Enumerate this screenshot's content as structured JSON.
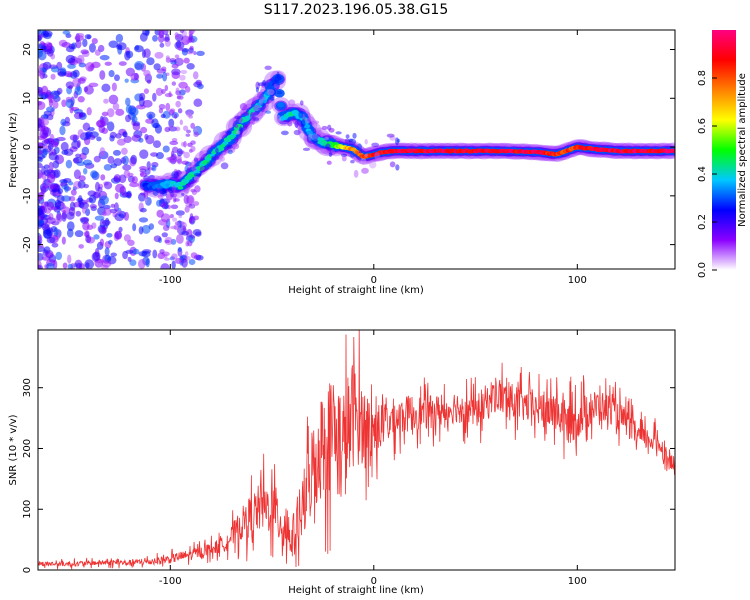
{
  "figure": {
    "title": "S117.2023.196.05.38.G15"
  },
  "chart_data": [
    {
      "type": "heatmap",
      "xlabel": "Height of straight line (km)",
      "ylabel": "Frequency (Hz)",
      "xlim": [
        -165,
        148
      ],
      "ylim": [
        -25,
        24
      ],
      "xticks": [
        -100,
        0,
        100
      ],
      "yticks": [
        -20,
        -10,
        0,
        10,
        20
      ],
      "grid": false,
      "colorbar": {
        "label": "Normalized spectral amplitude",
        "range": [
          0,
          1
        ],
        "ticks": [
          0.0,
          0.2,
          0.4,
          0.6,
          0.8
        ],
        "colormap": [
          "#ffffff",
          "#8a00ff",
          "#0000ff",
          "#00c8ff",
          "#00ff00",
          "#ffff00",
          "#ff8000",
          "#ff0000",
          "#ff0080"
        ]
      },
      "ridge": {
        "x": [
          -112,
          -105,
          -100,
          -95,
          -90,
          -85,
          -80,
          -75,
          -70,
          -65,
          -60,
          -55,
          -52,
          -50,
          -47,
          -45,
          -40,
          -35,
          -30,
          -25,
          -20,
          -15,
          -10,
          -5,
          0,
          5,
          10,
          20,
          40,
          60,
          80,
          90,
          100,
          110,
          120,
          130,
          148
        ],
        "y": [
          -8,
          -8,
          -7.5,
          -8,
          -6,
          -4,
          -2,
          0,
          2,
          5,
          7,
          9,
          11,
          12.5,
          14,
          6,
          7,
          6,
          2,
          1,
          0.5,
          0,
          -0.5,
          -2,
          -1.5,
          -1,
          -0.8,
          -0.8,
          -0.8,
          -0.8,
          -1,
          -1.5,
          0,
          -0.5,
          -0.8,
          -0.8,
          -0.8
        ],
        "amplitude": [
          0.3,
          0.35,
          0.4,
          0.45,
          0.45,
          0.45,
          0.45,
          0.45,
          0.45,
          0.45,
          0.45,
          0.4,
          0.4,
          0.35,
          0.3,
          0.4,
          0.45,
          0.4,
          0.4,
          0.45,
          0.5,
          0.7,
          0.8,
          0.85,
          0.9,
          0.95,
          1.0,
          1.0,
          1.0,
          1.0,
          1.0,
          0.9,
          0.9,
          1.0,
          1.0,
          1.0,
          1.0
        ]
      }
    },
    {
      "type": "line",
      "xlabel": "Height of straight line (km)",
      "ylabel": "SNR (10 * v/v)",
      "xlim": [
        -165,
        148
      ],
      "ylim": [
        0,
        395
      ],
      "xticks": [
        -100,
        0,
        100
      ],
      "yticks": [
        0,
        100,
        200,
        300
      ],
      "grid": false,
      "series": [
        {
          "color": "#ee3333",
          "x": [
            -165,
            -150,
            -135,
            -120,
            -110,
            -100,
            -95,
            -90,
            -85,
            -80,
            -75,
            -70,
            -65,
            -60,
            -55,
            -50,
            -45,
            -40,
            -35,
            -30,
            -25,
            -20,
            -15,
            -10,
            -5,
            0,
            5,
            10,
            15,
            20,
            25,
            30,
            35,
            40,
            45,
            50,
            55,
            60,
            65,
            70,
            75,
            80,
            85,
            90,
            95,
            100,
            105,
            110,
            115,
            120,
            125,
            130,
            135,
            140,
            145,
            148
          ],
          "y": [
            10,
            10,
            12,
            12,
            14,
            18,
            22,
            25,
            30,
            35,
            40,
            55,
            75,
            90,
            105,
            100,
            80,
            50,
            100,
            170,
            210,
            230,
            200,
            260,
            240,
            230,
            240,
            250,
            255,
            260,
            258,
            262,
            260,
            270,
            265,
            260,
            275,
            290,
            280,
            275,
            270,
            265,
            262,
            260,
            240,
            250,
            262,
            270,
            268,
            255,
            240,
            220,
            215,
            210,
            180,
            170
          ],
          "spikiness": [
            6,
            7,
            7,
            8,
            9,
            12,
            14,
            15,
            16,
            18,
            20,
            30,
            45,
            60,
            70,
            70,
            80,
            60,
            90,
            130,
            150,
            160,
            170,
            150,
            110,
            75,
            65,
            55,
            50,
            50,
            45,
            45,
            45,
            45,
            45,
            45,
            50,
            50,
            50,
            50,
            45,
            45,
            50,
            55,
            60,
            55,
            50,
            45,
            40,
            40,
            38,
            35,
            30,
            30,
            25,
            20
          ]
        }
      ]
    }
  ]
}
